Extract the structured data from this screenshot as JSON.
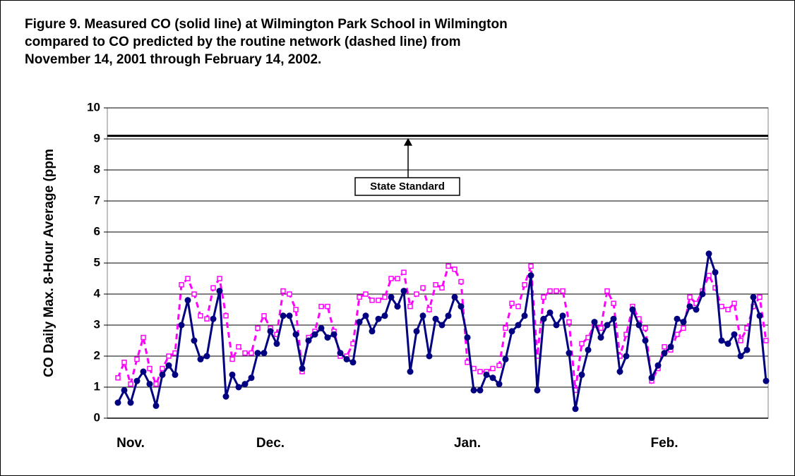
{
  "chart_data": {
    "type": "line",
    "title": [
      "Figure 9. Measured CO (solid line) at Wilmington Park School in Wilmington",
      "compared to CO predicted by the routine network (dashed line) from",
      "November 14, 2001 through February 14, 2002."
    ],
    "y_label": "CO Daily Max. 8-Hour Average (ppm",
    "categories": [
      null,
      null,
      "Nov.",
      null,
      null,
      null,
      null,
      null,
      null,
      null,
      null,
      null,
      null,
      null,
      null,
      null,
      null,
      null,
      null,
      null,
      null,
      null,
      null,
      null,
      "Dec.",
      null,
      null,
      null,
      null,
      null,
      null,
      null,
      null,
      null,
      null,
      null,
      null,
      null,
      null,
      null,
      null,
      null,
      null,
      null,
      null,
      null,
      null,
      null,
      null,
      null,
      null,
      null,
      null,
      null,
      null,
      "Jan.",
      null,
      null,
      null,
      null,
      null,
      null,
      null,
      null,
      null,
      null,
      null,
      null,
      null,
      null,
      null,
      null,
      null,
      null,
      null,
      null,
      null,
      null,
      null,
      null,
      null,
      null,
      null,
      null,
      null,
      null,
      "Feb.",
      null,
      null,
      null,
      null,
      null,
      null,
      null,
      null,
      null,
      null,
      null,
      null,
      null,
      null,
      null,
      null
    ],
    "series": [
      {
        "color": "#000080",
        "dashed": false,
        "marker": "circle",
        "values": [
          0.5,
          0.9,
          0.5,
          1.2,
          1.5,
          1.1,
          0.4,
          1.4,
          1.7,
          1.4,
          3.0,
          3.8,
          2.5,
          1.9,
          2.0,
          3.2,
          4.1,
          0.7,
          1.4,
          1.0,
          1.1,
          1.3,
          2.1,
          2.1,
          2.8,
          2.4,
          3.3,
          3.3,
          2.7,
          1.6,
          2.5,
          2.7,
          2.9,
          2.6,
          2.7,
          2.1,
          1.9,
          1.8,
          3.1,
          3.3,
          2.8,
          3.2,
          3.3,
          3.9,
          3.6,
          4.1,
          1.5,
          2.8,
          3.3,
          2.0,
          3.2,
          3.0,
          3.3,
          3.9,
          3.6,
          2.6,
          0.9,
          0.9,
          1.4,
          1.3,
          1.1,
          1.9,
          2.8,
          3.0,
          3.3,
          4.6,
          0.9,
          3.2,
          3.4,
          3.0,
          3.3,
          2.1,
          0.3,
          1.4,
          2.2,
          3.1,
          2.6,
          3.0,
          3.2,
          1.5,
          2.0,
          3.5,
          3.0,
          2.5,
          1.3,
          1.7,
          2.1,
          2.3,
          3.2,
          3.1,
          3.6,
          3.5,
          4.0,
          5.3,
          4.7,
          2.5,
          2.4,
          2.7,
          2.0,
          2.2,
          3.9,
          3.3,
          1.2
        ]
      },
      {
        "color": "#ff00ff",
        "dashed": true,
        "marker": "square",
        "values": [
          1.3,
          1.8,
          1.1,
          1.9,
          2.6,
          1.6,
          1.1,
          1.6,
          2.0,
          2.1,
          4.3,
          4.5,
          4.0,
          3.3,
          3.2,
          4.2,
          4.5,
          3.3,
          1.9,
          2.3,
          2.1,
          2.1,
          2.9,
          3.3,
          2.9,
          2.7,
          4.1,
          4.0,
          3.5,
          1.5,
          2.6,
          2.8,
          3.6,
          3.6,
          2.8,
          2.0,
          2.0,
          2.4,
          3.9,
          4.0,
          3.8,
          3.8,
          3.9,
          4.5,
          4.5,
          4.7,
          3.6,
          4.0,
          4.2,
          3.5,
          4.3,
          4.2,
          4.9,
          4.8,
          4.4,
          1.8,
          1.6,
          1.5,
          1.5,
          1.6,
          1.7,
          2.9,
          3.7,
          3.6,
          4.3,
          4.9,
          2.0,
          3.9,
          4.1,
          4.1,
          4.1,
          3.1,
          0.9,
          2.4,
          2.6,
          3.0,
          2.9,
          4.1,
          3.7,
          2.0,
          2.7,
          3.6,
          3.2,
          2.9,
          1.2,
          1.6,
          2.3,
          2.2,
          2.7,
          2.9,
          3.9,
          3.7,
          4.1,
          4.6,
          4.2,
          3.6,
          3.5,
          3.7,
          2.5,
          2.9,
          3.6,
          3.9,
          2.5
        ]
      }
    ],
    "reference_line": {
      "value": 9.1,
      "label": "State Standard",
      "color": "#000000"
    },
    "ylim": [
      0,
      10
    ],
    "yticks": [
      0,
      1,
      2,
      3,
      4,
      5,
      6,
      7,
      8,
      9,
      10
    ],
    "grid": true
  }
}
